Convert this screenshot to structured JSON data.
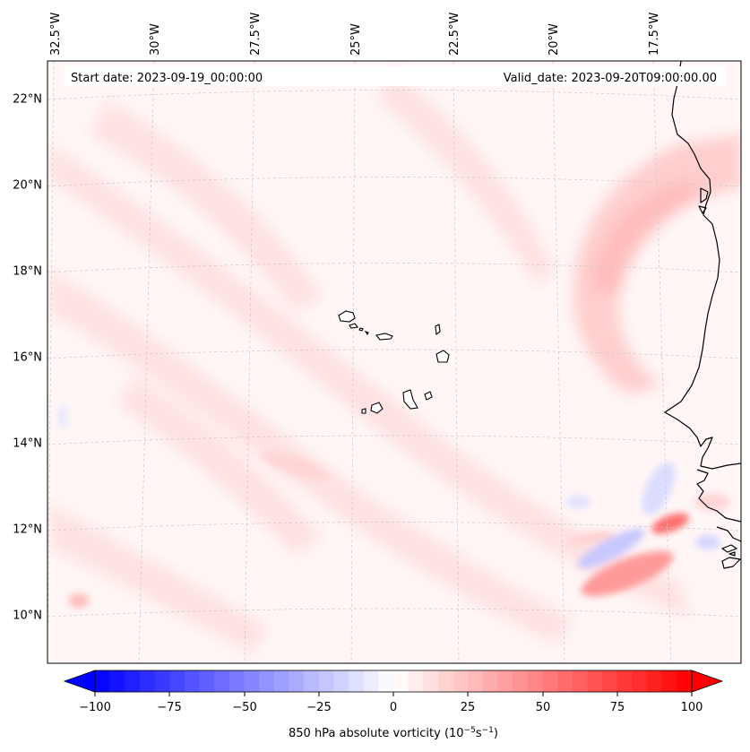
{
  "header": {
    "start_date": "Start date: 2023-09-19_00:00:00",
    "valid_date": "Valid_date: 2023-09-20T09:00:00.00"
  },
  "lon_labels": [
    "32.5°W",
    "30°W",
    "27.5°W",
    "25°W",
    "22.5°W",
    "20°W",
    "17.5°W"
  ],
  "lat_labels": [
    "22°N",
    "20°N",
    "18°N",
    "16°N",
    "14°N",
    "12°N",
    "10°N"
  ],
  "colorbar": {
    "ticks": [
      "−100",
      "−75",
      "−50",
      "−25",
      "0",
      "25",
      "50",
      "75",
      "100"
    ],
    "label_main": "850 hPa absolute vorticity (10",
    "label_exp1": "−5",
    "label_mid": "s",
    "label_exp2": "−1",
    "label_end": ")",
    "min": -100,
    "max": 100,
    "step": 5,
    "colors": {
      "negative": "#0000ff",
      "zero": "#ffffff",
      "positive": "#ff0000"
    }
  },
  "colors": {
    "coastline": "#000000",
    "gridline": "#bbbbbb"
  }
}
